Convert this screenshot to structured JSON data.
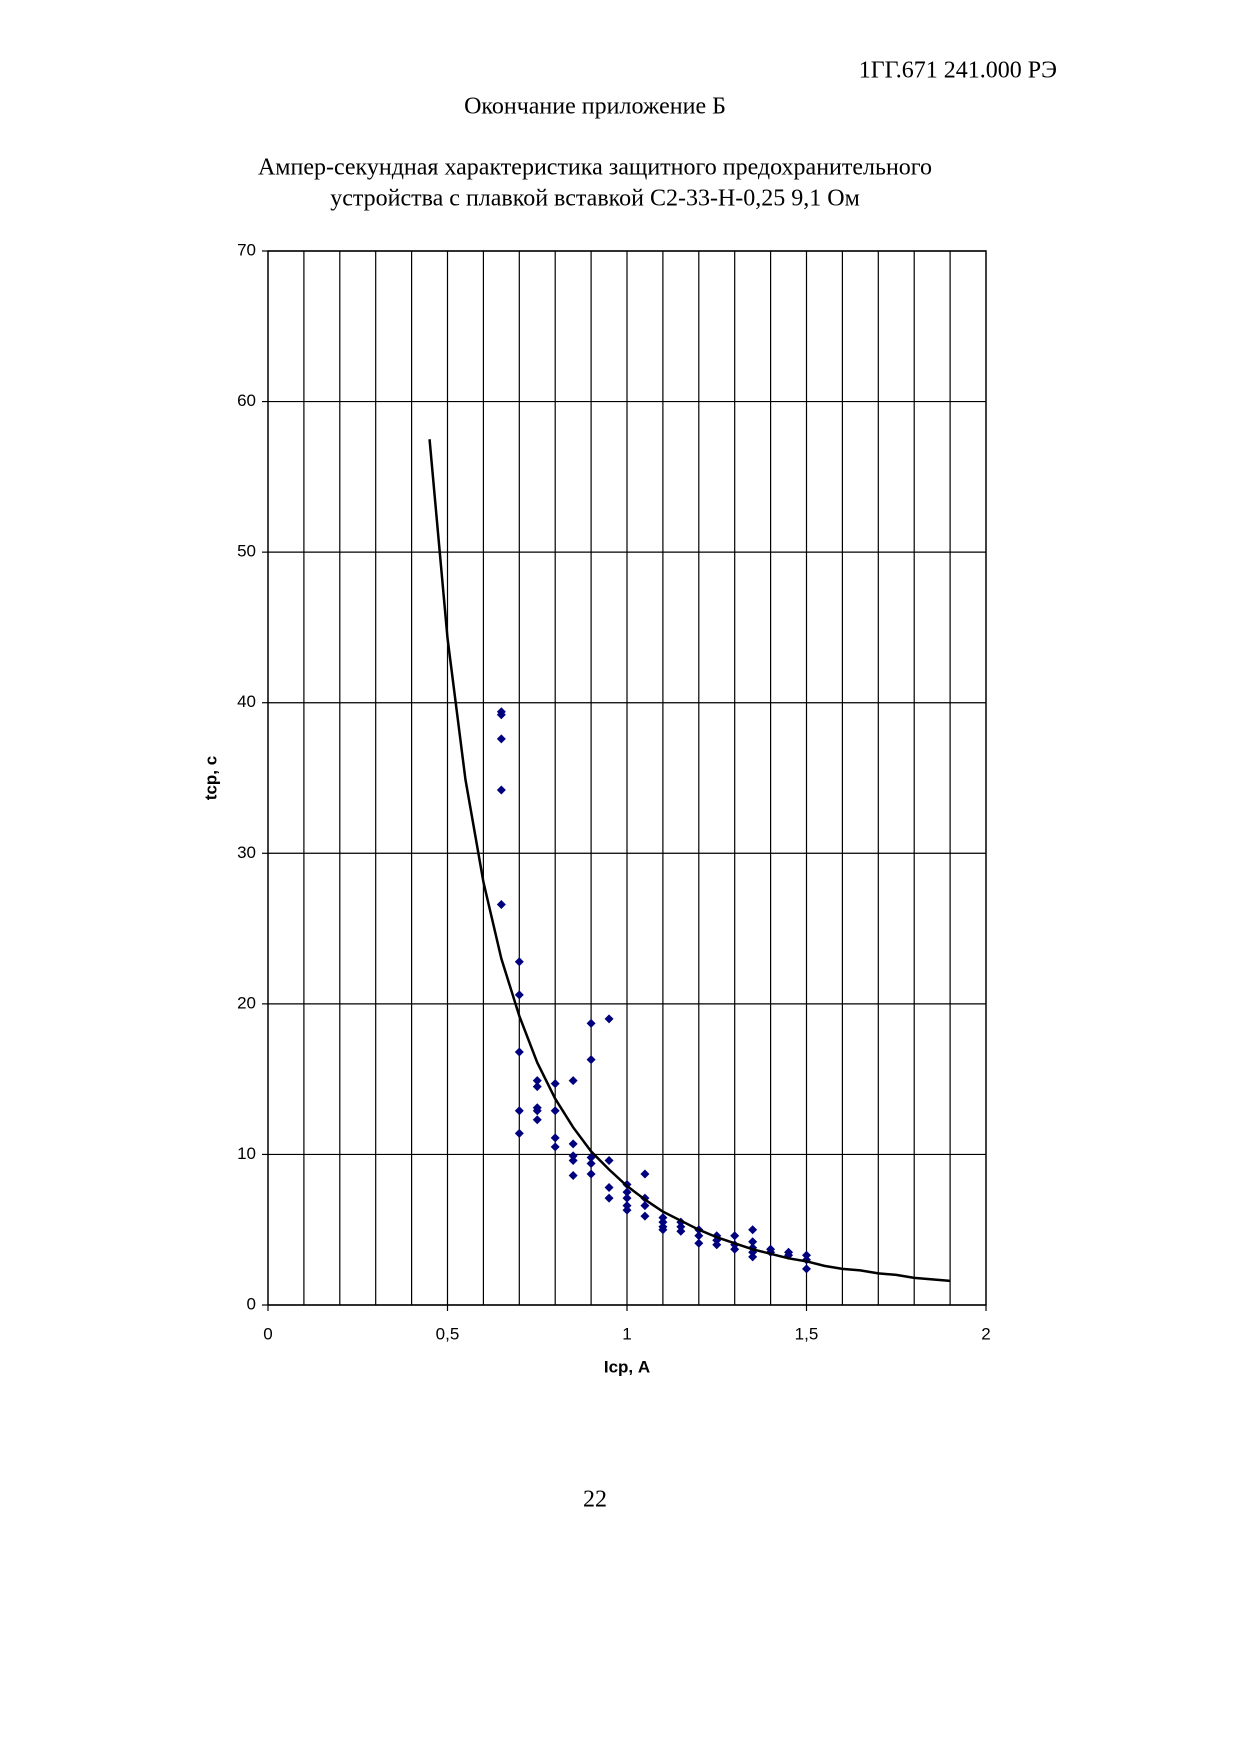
{
  "header": {
    "code": "1ГГ.671 241.000 РЭ",
    "subtitle": "Окончание приложение Б"
  },
  "chart_data": {
    "type": "scatter",
    "title": [
      "Ампер-секундная характеристика защитного предохранительного",
      "устройства с плавкой вставкой С2-33-Н-0,25 9,1 Ом"
    ],
    "xlabel": "Iср, А",
    "ylabel": "tср, с",
    "xlim": [
      0,
      2
    ],
    "ylim": [
      0,
      70
    ],
    "xticks": [
      0,
      {
        "value": 0.5,
        "label": "0,5"
      },
      1,
      {
        "value": 1.5,
        "label": "1,5"
      },
      2
    ],
    "yticks": [
      0,
      10,
      20,
      30,
      40,
      50,
      60,
      70
    ],
    "xgrid": [
      0.1,
      0.2,
      0.3,
      0.4,
      0.5,
      0.6,
      0.7,
      0.8,
      0.9,
      1.0,
      1.1,
      1.2,
      1.3,
      1.4,
      1.5,
      1.6,
      1.7,
      1.8,
      1.9
    ],
    "grid": true,
    "series": [
      {
        "type": "scatter",
        "color": "#00007f",
        "x": [
          0.65,
          0.65,
          0.65,
          0.65,
          0.65,
          0.7,
          0.7,
          0.7,
          0.7,
          0.7,
          0.75,
          0.75,
          0.75,
          0.75,
          0.75,
          0.8,
          0.8,
          0.8,
          0.8,
          0.85,
          0.85,
          0.85,
          0.85,
          0.85,
          0.9,
          0.9,
          0.9,
          0.9,
          0.9,
          0.95,
          0.95,
          0.95,
          0.95,
          1.0,
          1.0,
          1.0,
          1.0,
          1.0,
          1.05,
          1.05,
          1.05,
          1.05,
          1.1,
          1.1,
          1.1,
          1.1,
          1.15,
          1.15,
          1.15,
          1.2,
          1.2,
          1.2,
          1.25,
          1.25,
          1.25,
          1.3,
          1.3,
          1.3,
          1.35,
          1.35,
          1.35,
          1.35,
          1.35,
          1.4,
          1.4,
          1.45,
          1.45,
          1.5,
          1.5,
          1.5
        ],
        "values": [
          39.4,
          39.2,
          37.6,
          34.2,
          26.6,
          22.8,
          20.6,
          16.8,
          12.9,
          11.4,
          14.9,
          14.5,
          13.1,
          12.9,
          12.3,
          14.7,
          12.9,
          11.1,
          10.5,
          14.9,
          10.7,
          9.9,
          9.6,
          8.6,
          18.7,
          16.3,
          9.8,
          9.4,
          8.7,
          19.0,
          9.6,
          7.8,
          7.1,
          8.0,
          7.5,
          7.1,
          6.6,
          6.3,
          8.7,
          7.1,
          6.6,
          5.9,
          5.8,
          5.5,
          5.2,
          5.0,
          5.5,
          5.2,
          4.9,
          5.0,
          4.6,
          4.1,
          4.6,
          4.3,
          4.0,
          4.6,
          4.0,
          3.7,
          5.0,
          4.2,
          3.8,
          3.5,
          3.2,
          3.7,
          3.5,
          3.5,
          3.3,
          3.3,
          3.0,
          2.4
        ]
      },
      {
        "type": "line",
        "color": "#000000",
        "x": [
          0.45,
          0.5,
          0.55,
          0.6,
          0.65,
          0.7,
          0.75,
          0.8,
          0.85,
          0.9,
          0.95,
          1.0,
          1.05,
          1.1,
          1.15,
          1.2,
          1.25,
          1.3,
          1.35,
          1.4,
          1.45,
          1.5,
          1.55,
          1.6,
          1.65,
          1.7,
          1.75,
          1.8,
          1.85,
          1.9
        ],
        "values": [
          57.5,
          44.3,
          34.9,
          28.1,
          23.0,
          19.2,
          16.1,
          13.7,
          11.8,
          10.2,
          9.0,
          7.9,
          7.0,
          6.2,
          5.6,
          5.0,
          4.5,
          4.1,
          3.7,
          3.4,
          3.1,
          2.9,
          2.6,
          2.4,
          2.3,
          2.1,
          2.0,
          1.8,
          1.7,
          1.6
        ]
      }
    ]
  },
  "page_number": 22
}
